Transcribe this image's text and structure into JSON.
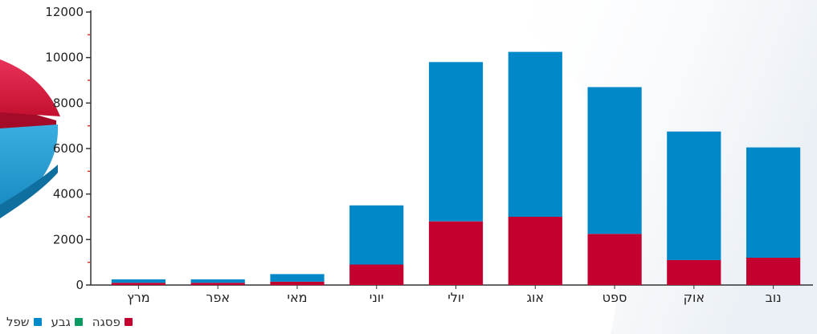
{
  "colors": {
    "series_1": "#c4002f",
    "series_2": "#0a9b62",
    "series_3": "#0088c8",
    "axis": "#333333",
    "tick_mark": "#e03030"
  },
  "chart_data": {
    "type": "bar",
    "stacked": true,
    "categories": [
      "מרץ",
      "אפר",
      "מאי",
      "יוני",
      "יולי",
      "אוג",
      "ספט",
      "אוק",
      "נוב"
    ],
    "yticks": [
      "0",
      "2000",
      "4000",
      "6000",
      "8000",
      "10000",
      "12000"
    ],
    "ylim": [
      0,
      12000
    ],
    "series": [
      {
        "name": "פסגה",
        "color": "#c4002f",
        "values": [
          100,
          100,
          150,
          900,
          2800,
          3000,
          2250,
          1100,
          1200
        ]
      },
      {
        "name": "גבע",
        "color": "#0a9b62",
        "values": [
          0,
          0,
          0,
          0,
          0,
          0,
          0,
          0,
          0
        ]
      },
      {
        "name": "שפל",
        "color": "#0088c8",
        "values": [
          150,
          150,
          330,
          2600,
          7000,
          7250,
          6450,
          5650,
          4850
        ]
      }
    ],
    "legend_position": "bottom-left",
    "grid": false
  },
  "legend": {
    "items": [
      {
        "label": "פסגה",
        "color": "#c4002f"
      },
      {
        "label": "גבע",
        "color": "#0a9b62"
      },
      {
        "label": "שפל",
        "color": "#0088c8"
      }
    ]
  }
}
